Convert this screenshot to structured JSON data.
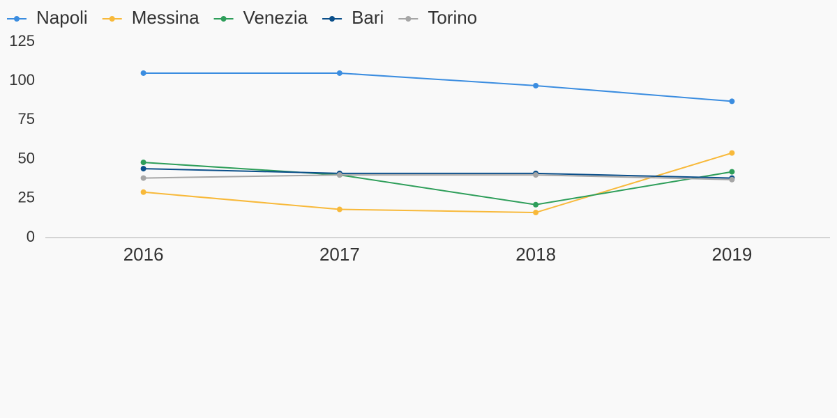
{
  "chart_data": {
    "type": "line",
    "categories": [
      "2016",
      "2017",
      "2018",
      "2019"
    ],
    "series": [
      {
        "name": "Napoli",
        "color": "#3b8de0",
        "values": [
          105,
          105,
          97,
          87
        ]
      },
      {
        "name": "Messina",
        "color": "#f8b93a",
        "values": [
          29,
          18,
          16,
          54
        ]
      },
      {
        "name": "Venezia",
        "color": "#2e9e5a",
        "values": [
          48,
          40,
          21,
          42
        ]
      },
      {
        "name": "Bari",
        "color": "#0b4f8a",
        "values": [
          44,
          41,
          41,
          38
        ]
      },
      {
        "name": "Torino",
        "color": "#a6a6a6",
        "values": [
          38,
          40,
          40,
          37
        ]
      }
    ],
    "ylim": [
      0,
      125
    ],
    "yticks": [
      0,
      25,
      50,
      75,
      100,
      125
    ],
    "grid": false,
    "legend": "top-left"
  }
}
